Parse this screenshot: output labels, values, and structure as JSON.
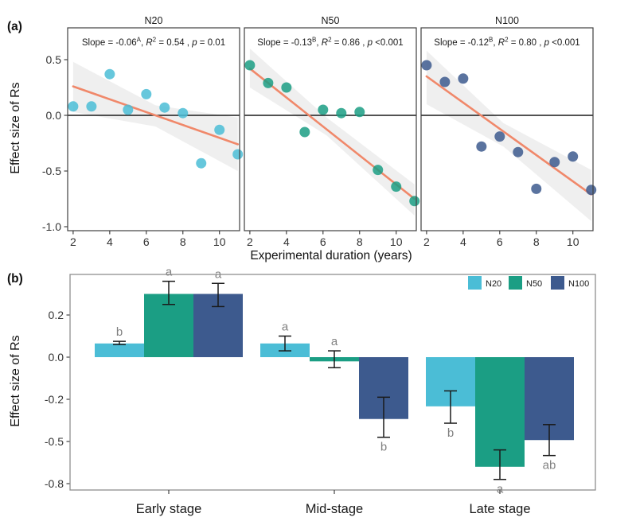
{
  "figure": {
    "panel_a_label": "(a)",
    "panel_b_label": "(b)",
    "ylabel_a": "Effect size of Rs",
    "ylabel_b": "Effect size of Rs",
    "xlabel_a": "Experimental duration (years)"
  },
  "colors": {
    "n20": "#4BBDD6",
    "n50": "#1B9E84",
    "n100": "#3D5A8E",
    "fit_line": "#F0886A",
    "ci_ribbon": "#E4E4E4",
    "sig_letter": "#808080",
    "panel_border_a": "#3f3f3f",
    "panel_border_b": "#8e8e8e",
    "tick_text": "#333333",
    "zero_line": "#1a1a1a",
    "error_bar": "#1a1a1a"
  },
  "chart_data": [
    {
      "type": "scatter",
      "xlabel": "Experimental duration (years)",
      "ylabel": "Effect size of Rs",
      "x_ticks": [
        2,
        4,
        6,
        8,
        10
      ],
      "y_ticks": [
        0.5,
        0.0,
        -0.5,
        -1.0
      ],
      "y_tick_labels": [
        "0.5",
        "0.0",
        "-0.5",
        "-1.0"
      ],
      "xlim": [
        1.7,
        11.1
      ],
      "ylim": [
        -1.04,
        0.79
      ],
      "grid": false,
      "panels": [
        {
          "name": "N20",
          "series_key": "n20",
          "annotation": {
            "slope": "-0.06",
            "slope_sup": "A",
            "r2": "0.54",
            "p": "= 0.01"
          },
          "x": [
            2,
            3,
            4,
            5,
            6,
            7,
            8,
            9,
            10,
            11
          ],
          "y": [
            0.08,
            0.08,
            0.37,
            0.05,
            0.19,
            0.07,
            0.02,
            -0.43,
            -0.13,
            -0.35
          ],
          "fit": {
            "x1": 2,
            "y1": 0.26,
            "x2": 11,
            "y2": -0.26
          },
          "ci": {
            "x": [
              2,
              6.5,
              11
            ],
            "upper": [
              0.48,
              0.09,
              -0.02
            ],
            "lower": [
              0.03,
              -0.1,
              -0.5
            ]
          }
        },
        {
          "name": "N50",
          "series_key": "n50",
          "annotation": {
            "slope": "-0.13",
            "slope_sup": "B",
            "r2": "0.86",
            "p": "<0.001"
          },
          "x": [
            2,
            3,
            4,
            5,
            6,
            7,
            8,
            9,
            10,
            11
          ],
          "y": [
            0.45,
            0.29,
            0.25,
            -0.15,
            0.05,
            0.02,
            0.03,
            -0.49,
            -0.64,
            -0.77
          ],
          "fit": {
            "x1": 2,
            "y1": 0.42,
            "x2": 11,
            "y2": -0.75
          },
          "ci": {
            "x": [
              2,
              6.2,
              11
            ],
            "upper": [
              0.6,
              -0.02,
              -0.62
            ],
            "lower": [
              0.25,
              -0.18,
              -0.9
            ]
          }
        },
        {
          "name": "N100",
          "series_key": "n100",
          "annotation": {
            "slope": "-0.12",
            "slope_sup": "B",
            "r2": "0.80",
            "p": "<0.001"
          },
          "x": [
            2,
            3,
            4,
            5,
            6,
            7,
            8,
            9,
            10,
            11
          ],
          "y": [
            0.45,
            0.3,
            0.33,
            -0.28,
            -0.19,
            -0.33,
            -0.66,
            -0.42,
            -0.37,
            -0.67
          ],
          "fit": {
            "x1": 2,
            "y1": 0.35,
            "x2": 11,
            "y2": -0.71
          },
          "ci": {
            "x": [
              2,
              6.2,
              11
            ],
            "upper": [
              0.58,
              -0.07,
              -0.49
            ],
            "lower": [
              0.1,
              -0.28,
              -0.95
            ]
          }
        }
      ]
    },
    {
      "type": "bar",
      "ylabel": "Effect size of Rs",
      "categories": [
        "Early stage",
        "Mid-stage",
        "Late stage"
      ],
      "y_ticks": [
        0.2,
        0.0,
        -0.2,
        -0.5,
        -0.8
      ],
      "y_tick_labels": [
        "0.2",
        "0.0",
        "-0.2",
        "-0.5",
        "-0.8"
      ],
      "grid": false,
      "legend": [
        "N20",
        "N50",
        "N100"
      ],
      "legend_position": "top-right",
      "series": [
        {
          "name": "N20",
          "series_key": "n20",
          "values": [
            0.065,
            0.065,
            -0.25
          ],
          "err_low": [
            0.06,
            0.03,
            -0.37
          ],
          "err_high": [
            0.075,
            0.1,
            -0.16
          ],
          "letters": [
            "b",
            "a",
            "b"
          ],
          "letter_pos": [
            "above",
            "above",
            "below"
          ]
        },
        {
          "name": "N50",
          "series_key": "n50",
          "values": [
            0.3,
            -0.02,
            -0.68
          ],
          "err_low": [
            0.25,
            -0.05,
            -0.77
          ],
          "err_high": [
            0.36,
            0.03,
            -0.56
          ],
          "letters": [
            "a",
            "a",
            "a"
          ],
          "letter_pos": [
            "above",
            "above",
            "below"
          ]
        },
        {
          "name": "N100",
          "series_key": "n100",
          "values": [
            0.3,
            -0.34,
            -0.49
          ],
          "err_low": [
            0.24,
            -0.47,
            -0.6
          ],
          "err_high": [
            0.35,
            -0.19,
            -0.38
          ],
          "letters": [
            "a",
            "b",
            "ab"
          ],
          "letter_pos": [
            "above",
            "below",
            "below"
          ]
        }
      ]
    }
  ]
}
